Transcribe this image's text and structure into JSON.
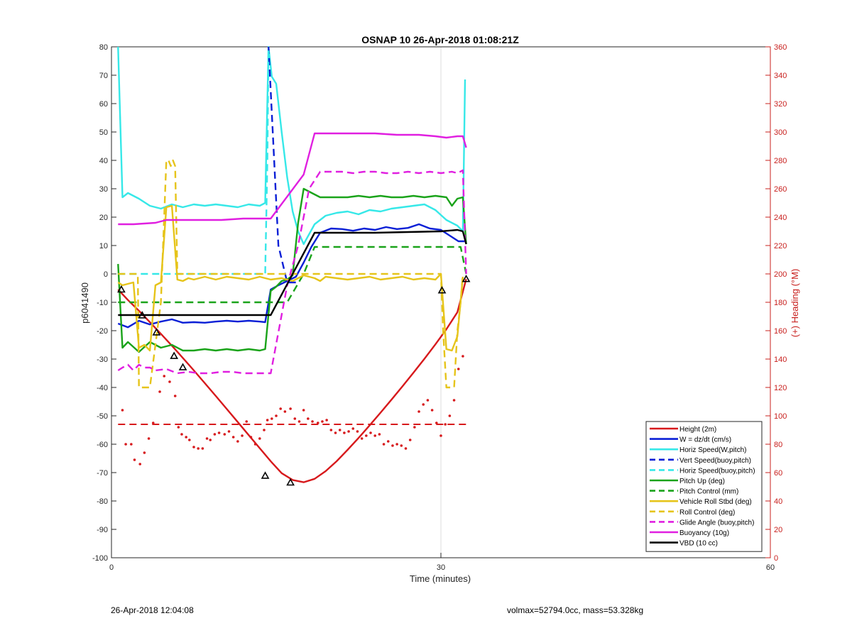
{
  "chart_data": {
    "type": "line",
    "title": "OSNAP 10 26-Apr-2018 01:08:21Z",
    "xlabel": "Time (minutes)",
    "ylabel_left": "p6041490",
    "ylabel_right": "(+) Heading (°M)",
    "xlim": [
      0,
      60
    ],
    "ylim_left": [
      -100,
      80
    ],
    "ylim_right": [
      0,
      360
    ],
    "x_ticks": [
      0,
      30,
      60
    ],
    "y_ticks_left": [
      80,
      70,
      60,
      50,
      40,
      30,
      20,
      10,
      0,
      -10,
      -20,
      -30,
      -40,
      -50,
      -60,
      -70,
      -80,
      -90,
      -100
    ],
    "y_ticks_right": [
      360,
      340,
      320,
      300,
      280,
      260,
      240,
      220,
      200,
      180,
      160,
      140,
      120,
      100,
      80,
      60,
      40,
      20,
      0
    ],
    "grid": "x-only",
    "legend_position": "bottom-right",
    "colors": {
      "red": "#d7191c",
      "blue": "#0a1fd6",
      "cyan": "#36e8e8",
      "green": "#1aa31a",
      "yellow": "#e6c41a",
      "magenta": "#e01fe0",
      "black": "#000000",
      "right_axis": "#c8201e"
    },
    "series": [
      {
        "name": "Height (2m)",
        "color": "#d7191c",
        "dash": "solid",
        "axis": "left",
        "x": [
          0.6,
          1.5,
          2.5,
          3.5,
          4.5,
          5.5,
          6.5,
          7.5,
          8.5,
          9.5,
          10.5,
          11.5,
          12.5,
          13.5,
          14.5,
          15.5,
          16.5,
          17.5,
          18.5,
          19.5,
          20.5,
          21.5,
          22.5,
          23.5,
          24.5,
          25.5,
          26.5,
          27.5,
          28.5,
          29.5,
          30.5,
          31.5,
          32.3
        ],
        "y": [
          -5.5,
          -9.2,
          -13.0,
          -17.0,
          -21.1,
          -25.3,
          -29.6,
          -34.0,
          -38.5,
          -43.0,
          -47.6,
          -52.2,
          -56.8,
          -61.4,
          -66.0,
          -70.2,
          -72.6,
          -73.4,
          -72.2,
          -69.5,
          -66.0,
          -62.0,
          -57.8,
          -53.4,
          -48.9,
          -44.3,
          -39.6,
          -34.8,
          -29.9,
          -24.8,
          -19.5,
          -13.5,
          -1.8
        ]
      },
      {
        "name": "W = dz/dt (cm/s)",
        "color": "#0a1fd6",
        "dash": "solid",
        "axis": "left",
        "x": [
          0.6,
          1.5,
          2.5,
          3.5,
          4.5,
          5.5,
          6.5,
          7.5,
          8.5,
          9.5,
          10.5,
          11.5,
          12.5,
          13.5,
          14.0,
          14.5,
          15.2,
          16.0,
          16.8,
          17.5,
          18.2,
          19.0,
          20.0,
          21.0,
          22.0,
          23.0,
          24.0,
          25.0,
          26.0,
          27.0,
          28.0,
          29.0,
          30.0,
          31.0,
          31.6,
          32.3
        ],
        "y": [
          -17.5,
          -18.8,
          -16.5,
          -17.8,
          -16.8,
          -16.0,
          -17.2,
          -17.0,
          -17.2,
          -16.8,
          -16.5,
          -16.8,
          -16.5,
          -16.8,
          -17.0,
          -5.5,
          -4.0,
          -2.5,
          -1.0,
          4.0,
          9.5,
          14.5,
          16.0,
          15.8,
          15.2,
          16.0,
          15.5,
          16.5,
          15.8,
          16.2,
          17.5,
          16.0,
          15.5,
          13.0,
          11.5,
          11.5
        ]
      },
      {
        "name": "Horiz Speed(W,pitch)",
        "color": "#36e8e8",
        "dash": "solid",
        "axis": "left",
        "x": [
          0.6,
          1.0,
          1.5,
          2.5,
          3.5,
          4.5,
          5.5,
          6.5,
          7.5,
          8.5,
          9.5,
          10.5,
          11.5,
          12.5,
          13.5,
          14.0,
          14.3,
          14.6,
          15.0,
          15.5,
          16.0,
          16.5,
          17.0,
          17.5,
          18.5,
          19.5,
          20.5,
          21.5,
          22.5,
          23.5,
          24.5,
          25.5,
          26.5,
          27.5,
          28.5,
          29.5,
          30.5,
          31.5,
          32.0,
          32.2
        ],
        "y": [
          80.0,
          27.0,
          28.5,
          26.5,
          24.0,
          23.0,
          24.5,
          23.5,
          24.5,
          24.0,
          24.5,
          24.0,
          23.5,
          24.5,
          24.0,
          25.0,
          80.0,
          69.5,
          67.0,
          50.0,
          34.0,
          22.0,
          15.0,
          10.5,
          17.5,
          20.5,
          21.5,
          22.0,
          21.0,
          22.5,
          22.0,
          23.0,
          23.5,
          24.0,
          24.5,
          22.5,
          19.0,
          17.0,
          15.0,
          68.5
        ]
      },
      {
        "name": "Vert Speed(buoy,pitch)",
        "color": "#0a1fd6",
        "dash": "dashed",
        "axis": "left",
        "x": [
          14.3,
          15.2,
          16.0,
          17.0
        ],
        "y": [
          80.0,
          10.0,
          -3.0,
          -3.0
        ]
      },
      {
        "name": "Horiz Speed(buoy,pitch)",
        "color": "#36e8e8",
        "dash": "dashed",
        "axis": "left",
        "x": [
          0.6,
          14.0,
          14.2,
          14.3
        ],
        "y": [
          0.0,
          0.0,
          40.0,
          80.0
        ]
      },
      {
        "name": "Pitch Up (deg)",
        "color": "#1aa31a",
        "dash": "solid",
        "axis": "left",
        "x": [
          0.6,
          1.0,
          1.5,
          2.5,
          3.5,
          4.5,
          5.5,
          6.5,
          7.5,
          8.5,
          9.5,
          10.5,
          11.5,
          12.5,
          13.5,
          14.0,
          14.5,
          15.0,
          15.5,
          16.0,
          16.5,
          17.0,
          17.5,
          18.0,
          18.5,
          19.0,
          19.5,
          20.5,
          21.5,
          22.5,
          23.5,
          24.5,
          25.5,
          26.5,
          27.5,
          28.5,
          29.5,
          30.5,
          31.0,
          31.5,
          32.0,
          32.3
        ],
        "y": [
          3.5,
          -26.0,
          -24.0,
          -27.5,
          -24.0,
          -26.0,
          -25.0,
          -27.0,
          -27.0,
          -26.5,
          -27.0,
          -26.5,
          -27.0,
          -26.5,
          -27.0,
          -26.5,
          -6.0,
          -4.5,
          -2.5,
          -2.0,
          -0.5,
          18.0,
          30.0,
          29.0,
          28.0,
          27.0,
          27.0,
          27.0,
          27.0,
          27.5,
          27.0,
          27.5,
          27.0,
          27.0,
          27.5,
          27.0,
          27.5,
          27.0,
          24.0,
          26.5,
          27.0,
          10.5
        ]
      },
      {
        "name": "Pitch Control (mm)",
        "color": "#1aa31a",
        "dash": "dashed",
        "axis": "left",
        "x": [
          0.6,
          1.0,
          6.0,
          14.5,
          16.0,
          17.5,
          18.5,
          31.8,
          32.3
        ],
        "y": [
          -10.0,
          -10.0,
          -10.0,
          -10.0,
          -10.0,
          0.0,
          9.5,
          9.5,
          0.0
        ]
      },
      {
        "name": "Vehicle Roll Stbd (deg)",
        "color": "#e6c41a",
        "dash": "solid",
        "axis": "left",
        "x": [
          0.6,
          1.0,
          2.0,
          2.5,
          3.0,
          3.5,
          4.0,
          4.5,
          5.0,
          5.5,
          6.0,
          6.5,
          7.0,
          7.5,
          8.5,
          9.5,
          10.5,
          11.5,
          12.5,
          13.5,
          14.5,
          15.5,
          16.5,
          17.5,
          18.5,
          19.0,
          19.5,
          20.5,
          21.5,
          22.5,
          23.5,
          24.5,
          25.5,
          26.5,
          27.5,
          28.5,
          29.5,
          30.0,
          30.5,
          31.0,
          31.5,
          32.0
        ],
        "y": [
          -3.0,
          -4.0,
          -3.0,
          -26.0,
          -25.0,
          -27.0,
          -4.0,
          -3.0,
          23.5,
          24.0,
          -2.0,
          -2.5,
          -1.5,
          -2.0,
          -1.0,
          -2.0,
          -1.0,
          -1.5,
          -2.0,
          -1.0,
          -2.0,
          -1.5,
          -2.5,
          -0.5,
          -1.5,
          -2.5,
          -1.0,
          -1.5,
          -2.0,
          -1.5,
          -1.0,
          -2.0,
          -1.5,
          -1.0,
          -2.0,
          -1.5,
          -2.0,
          0.0,
          -26.5,
          -27.0,
          -22.0,
          -1.0
        ]
      },
      {
        "name": "Roll Control (deg)",
        "color": "#e6c41a",
        "dash": "dashed",
        "axis": "left",
        "x": [
          0.6,
          2.4,
          2.5,
          3.0,
          3.3,
          3.5,
          4.0,
          4.5,
          5.0,
          5.2,
          5.4,
          5.6,
          5.8,
          6.0,
          6.3,
          14.5,
          30.0,
          30.2,
          30.5,
          31.0,
          31.2,
          31.5,
          31.8,
          32.0
        ],
        "y": [
          0.0,
          0.0,
          -40.0,
          -40.0,
          -40.0,
          -40.0,
          -25.0,
          -10.0,
          40.0,
          40.0,
          38.0,
          40.0,
          38.0,
          0.0,
          0.0,
          0.0,
          0.0,
          -20.0,
          -40.0,
          -40.0,
          -40.0,
          -20.0,
          -10.0,
          0.0
        ]
      },
      {
        "name": "Glide Angle (buoy,pitch)",
        "color": "#e01fe0",
        "dash": "dashed",
        "axis": "left",
        "x": [
          0.6,
          1.0,
          1.5,
          2.0,
          2.5,
          3.0,
          3.5,
          4.0,
          5.0,
          6.0,
          7.0,
          8.0,
          9.0,
          10.0,
          11.0,
          12.0,
          13.0,
          14.5,
          16.0,
          17.0,
          18.0,
          19.0,
          20.0,
          21.0,
          22.0,
          23.0,
          24.0,
          25.0,
          26.0,
          27.0,
          28.0,
          29.0,
          30.0,
          31.0,
          31.5,
          32.0,
          32.3
        ],
        "y": [
          -34.0,
          -33.0,
          -32.0,
          -34.0,
          -32.0,
          -33.0,
          -33.0,
          -34.0,
          -33.5,
          -35.0,
          -34.5,
          -35.0,
          -35.0,
          -34.5,
          -34.5,
          -35.0,
          -35.0,
          -35.0,
          -4.0,
          10.0,
          30.0,
          36.0,
          36.0,
          36.0,
          35.5,
          36.0,
          36.0,
          35.5,
          35.5,
          36.0,
          35.5,
          36.0,
          35.5,
          36.0,
          35.5,
          36.5,
          0.0
        ]
      },
      {
        "name": "Buoyancy (10g)",
        "color": "#e01fe0",
        "dash": "solid",
        "axis": "left",
        "x": [
          0.6,
          2.0,
          4.0,
          5.0,
          6.0,
          8.0,
          10.0,
          12.0,
          14.5,
          17.5,
          18.5,
          20.0,
          22.0,
          24.0,
          26.0,
          28.0,
          29.5,
          30.5,
          31.5,
          32.0,
          32.3
        ],
        "y": [
          17.5,
          17.5,
          18.0,
          19.0,
          19.0,
          19.0,
          19.0,
          19.5,
          19.5,
          35.0,
          49.5,
          49.5,
          49.5,
          49.5,
          49.0,
          49.0,
          48.5,
          48.0,
          48.5,
          48.5,
          44.5
        ]
      },
      {
        "name": "VBD (10 cc)",
        "color": "#000000",
        "dash": "solid",
        "axis": "left",
        "x": [
          0.6,
          14.5,
          18.5,
          24.0,
          30.0,
          31.5,
          32.0,
          32.3
        ],
        "y": [
          -14.5,
          -14.5,
          14.5,
          14.5,
          15.0,
          15.5,
          15.0,
          10.5
        ]
      }
    ],
    "heading_dashed": {
      "color": "#d7191c",
      "axis": "right",
      "x": [
        0.6,
        32.3
      ],
      "y": [
        94,
        94
      ]
    },
    "heading_points": {
      "color": "#d7191c",
      "axis": "right",
      "x": [
        1.0,
        1.3,
        1.8,
        2.1,
        2.6,
        3.0,
        3.4,
        3.8,
        4.4,
        4.8,
        5.3,
        5.8,
        6.1,
        6.4,
        6.8,
        7.1,
        7.5,
        7.9,
        8.3,
        8.7,
        9.0,
        9.4,
        9.8,
        10.3,
        10.7,
        11.1,
        11.5,
        11.9,
        12.3,
        12.7,
        13.1,
        13.5,
        13.9,
        14.2,
        14.6,
        15.0,
        15.4,
        15.8,
        16.3,
        16.7,
        17.1,
        17.5,
        17.9,
        18.3,
        18.8,
        19.2,
        19.6,
        20.0,
        20.4,
        20.8,
        21.2,
        21.6,
        22.0,
        22.4,
        22.8,
        23.2,
        23.6,
        24.0,
        24.4,
        24.8,
        25.2,
        25.6,
        26.0,
        26.4,
        26.8,
        27.2,
        27.6,
        28.0,
        28.4,
        28.8,
        29.2,
        29.6,
        30.0,
        30.4,
        30.8,
        31.2,
        31.6,
        32.0
      ],
      "y": [
        104,
        80,
        80,
        69,
        66,
        74,
        84,
        95,
        117,
        128,
        124,
        114,
        92,
        87,
        85,
        83,
        78,
        77,
        77,
        84,
        83,
        87,
        88,
        87,
        89,
        85,
        82,
        86,
        96,
        85,
        80,
        84,
        90,
        97,
        98,
        100,
        105,
        103,
        105,
        98,
        96,
        104,
        98,
        96,
        95,
        96,
        97,
        90,
        88,
        90,
        88,
        89,
        91,
        89,
        84,
        86,
        88,
        86,
        87,
        80,
        82,
        79,
        80,
        79,
        77,
        83,
        92,
        103,
        108,
        111,
        104,
        95,
        86,
        94,
        100,
        111,
        133,
        142
      ]
    },
    "triangle_markers": {
      "axis": "left",
      "x": [
        0.9,
        2.8,
        4.1,
        5.7,
        6.5,
        14.0,
        16.3,
        30.1,
        32.3
      ],
      "y": [
        -5.5,
        -14.6,
        -20.6,
        -28.9,
        -32.9,
        -71.1,
        -73.5,
        -5.8,
        -1.8
      ]
    }
  },
  "footer": {
    "left": "26-Apr-2018 12:04:08",
    "right": "volmax=52794.0cc, mass=53.328kg"
  }
}
